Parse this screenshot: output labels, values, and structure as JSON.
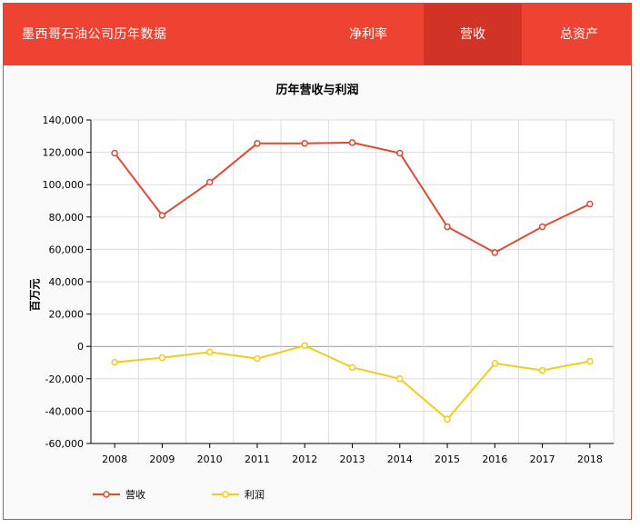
{
  "header": {
    "app_title": "墨西哥石油公司历年数据",
    "tabs": [
      {
        "label": "净利率",
        "active": false
      },
      {
        "label": "营收",
        "active": true
      },
      {
        "label": "总资产",
        "active": false
      }
    ]
  },
  "colors": {
    "brand": "#ee4332",
    "tab_active": "#d13426",
    "revenue": "#e04a2f",
    "profit": "#f2cc1b"
  },
  "chart_data": {
    "type": "line",
    "title": "历年营收与利润",
    "xlabel": "",
    "ylabel": "百万元",
    "x": [
      "2008",
      "2009",
      "2010",
      "2011",
      "2012",
      "2013",
      "2014",
      "2015",
      "2016",
      "2017",
      "2018"
    ],
    "ylim": [
      -60000,
      140000
    ],
    "yticks": [
      140000,
      120000,
      100000,
      80000,
      60000,
      40000,
      20000,
      0,
      -20000,
      -40000,
      -60000
    ],
    "ytick_labels": [
      "140,000",
      "120,000",
      "100,000",
      "80,000",
      "60,000",
      "40,000",
      "20,000",
      "0",
      "-20,000",
      "-40,000",
      "-60,000"
    ],
    "grid": true,
    "legend_position": "bottom-left",
    "series": [
      {
        "name": "营收",
        "color": "#e04a2f",
        "values": [
          119500,
          81000,
          101500,
          125500,
          125500,
          126000,
          119500,
          74000,
          58000,
          74000,
          88000
        ]
      },
      {
        "name": "利润",
        "color": "#f2cc1b",
        "values": [
          -9800,
          -7000,
          -3500,
          -7500,
          500,
          -13000,
          -20000,
          -45000,
          -10500,
          -14800,
          -9200
        ]
      }
    ]
  }
}
